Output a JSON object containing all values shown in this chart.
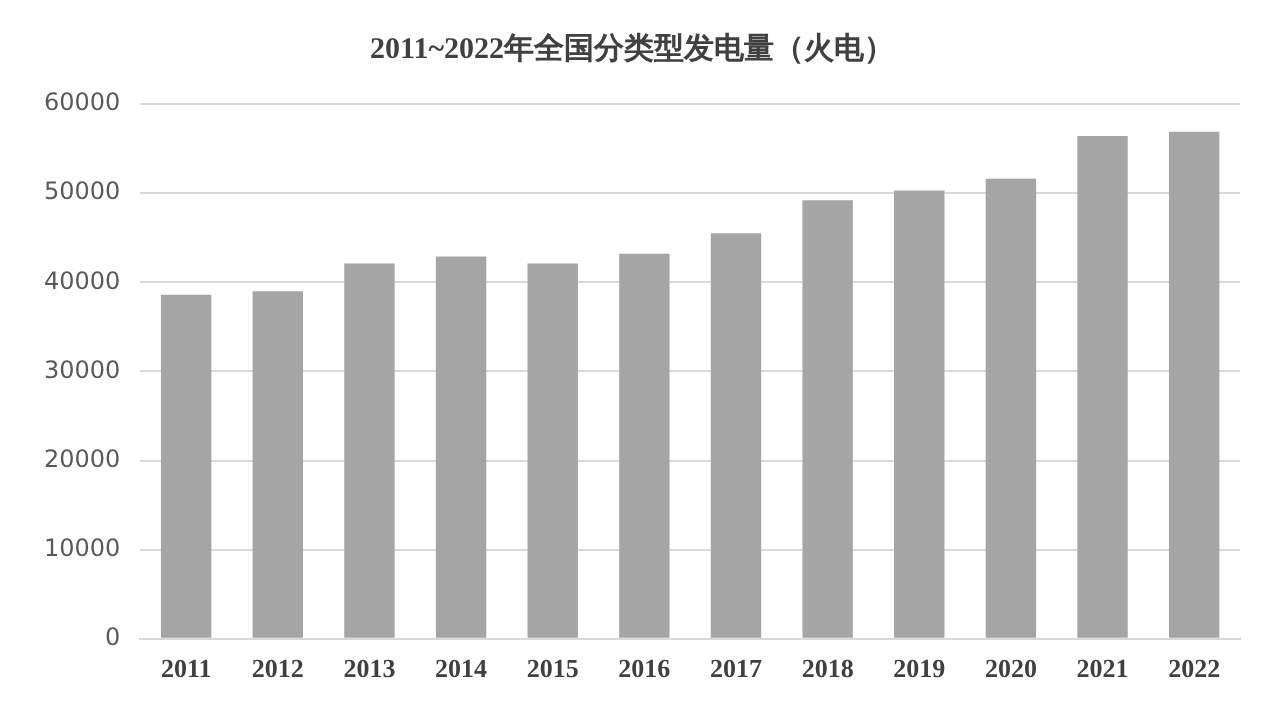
{
  "chart_data": {
    "type": "bar",
    "title": "2011~2022年全国分类型发电量（火电）",
    "categories": [
      "2011",
      "2012",
      "2013",
      "2014",
      "2015",
      "2016",
      "2017",
      "2018",
      "2019",
      "2020",
      "2021",
      "2022"
    ],
    "values": [
      38600,
      39000,
      42100,
      42900,
      42100,
      43200,
      45500,
      49200,
      50300,
      51600,
      56400,
      56900
    ],
    "color": "#a5a5a5",
    "ylim": [
      0,
      60000
    ],
    "yticks": [
      0,
      10000,
      20000,
      30000,
      40000,
      50000,
      60000
    ],
    "grid": "y",
    "legend": false
  }
}
